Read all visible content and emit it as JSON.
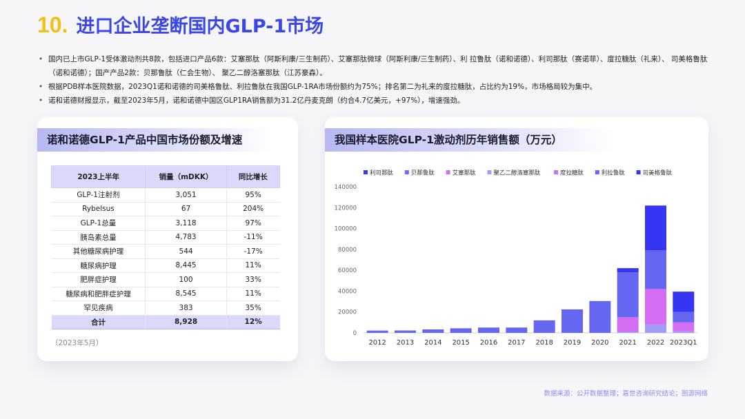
{
  "title": {
    "number": "10.",
    "text": "进口企业垄断国内GLP-1市场"
  },
  "bullets": [
    "国内已上市GLP-1受体激动剂共8款，包括进口产品6款：艾塞那肽（阿斯利康/三生制药）、艾塞那肽微球（阿斯利康/三生制药）、利 拉鲁肽（诺和诺德）、利司那肽（赛诺菲）、度拉糖肽（礼来）、 司美格鲁肽（诺和诺德）；国产产品2款：贝那鲁肽（仁会生物）、 聚乙二醇洛塞那肽（江苏豪森）。",
    "根据PDB样本医院数据，2023Q1诺和诺德的司美格鲁肽、利拉鲁肽在我国GLP-1RA市场份额约为75%；排名第二为礼来的度拉糖肽，占比约为19%，市场格局较为集中。",
    "诺和诺德财报显示，截至2023年5月，诺和诺德中国区GLP1RA销售额为31.2亿丹麦克朗（约合4.7亿美元，+97%），增速强劲。"
  ],
  "table_card": {
    "heading": "诺和诺德GLP-1产品中国市场份额及增速",
    "headers": [
      "2023上半年",
      "销量（mDKK）",
      "同比增长"
    ],
    "rows": [
      [
        "GLP-1注射剂",
        "3,051",
        "95%"
      ],
      [
        "Rybelsus",
        "67",
        "204%"
      ],
      [
        "GLP-1总量",
        "3,118",
        "97%"
      ],
      [
        "胰岛素总量",
        "4,783",
        "-11%"
      ],
      [
        "其他糖尿病护理",
        "544",
        "-17%"
      ],
      [
        "糖尿病护理",
        "8,445",
        "11%"
      ],
      [
        "肥胖症护理",
        "100",
        "33%"
      ],
      [
        "糖尿病和肥胖症护理",
        "8,545",
        "11%"
      ],
      [
        "罕见疾病",
        "383",
        "35%"
      ]
    ],
    "total": [
      "合计",
      "8,928",
      "12%"
    ],
    "note": "（2023年5月）"
  },
  "chart_card": {
    "heading": "我国样本医院GLP-1激动剂历年销售额（万元）"
  },
  "chart_data": {
    "type": "bar",
    "stacked": true,
    "title": "我国样本医院GLP-1激动剂历年销售额（万元）",
    "categories": [
      "2012",
      "2013",
      "2014",
      "2015",
      "2016",
      "2017",
      "2018",
      "2019",
      "2020",
      "2021",
      "2022",
      "2023Q1"
    ],
    "ylim": [
      0,
      140000
    ],
    "yticks": [
      0,
      20000,
      40000,
      60000,
      80000,
      100000,
      120000,
      140000
    ],
    "grid": false,
    "legend_position": "top",
    "series": [
      {
        "name": "利司那肽",
        "color": "#3a36f0",
        "values": [
          0,
          0,
          0,
          0,
          0,
          0,
          0,
          0,
          0,
          0,
          0,
          0
        ]
      },
      {
        "name": "贝那鲁肽",
        "color": "#6d6cf7",
        "values": [
          0,
          0,
          0,
          0,
          0,
          0,
          0,
          0,
          0,
          0,
          0,
          0
        ]
      },
      {
        "name": "艾塞那肽",
        "color": "#cf6cf0",
        "values": [
          0,
          0,
          0,
          0,
          0,
          0,
          0,
          0,
          0,
          0,
          0,
          0
        ]
      },
      {
        "name": "聚乙二醇洛塞那肽",
        "color": "#9e9df7",
        "values": [
          0,
          0,
          0,
          0,
          0,
          0,
          0,
          0,
          0,
          1000,
          8000,
          1500
        ]
      },
      {
        "name": "度拉糖肽",
        "color": "#d56df2",
        "values": [
          0,
          0,
          0,
          0,
          0,
          0,
          0,
          0,
          0,
          14000,
          34000,
          8500
        ]
      },
      {
        "name": "利拉鲁肽",
        "color": "#6566f2",
        "values": [
          2200,
          2300,
          3300,
          4400,
          5100,
          5100,
          12000,
          22500,
          30500,
          43000,
          37000,
          10000
        ]
      },
      {
        "name": "司美格鲁肽",
        "color": "#3535f3",
        "values": [
          0,
          0,
          0,
          0,
          0,
          0,
          0,
          0,
          0,
          4000,
          43000,
          19500
        ]
      }
    ]
  },
  "source": "数据来源：公开数据整理；嘉世咨询研究结论；图源网络"
}
